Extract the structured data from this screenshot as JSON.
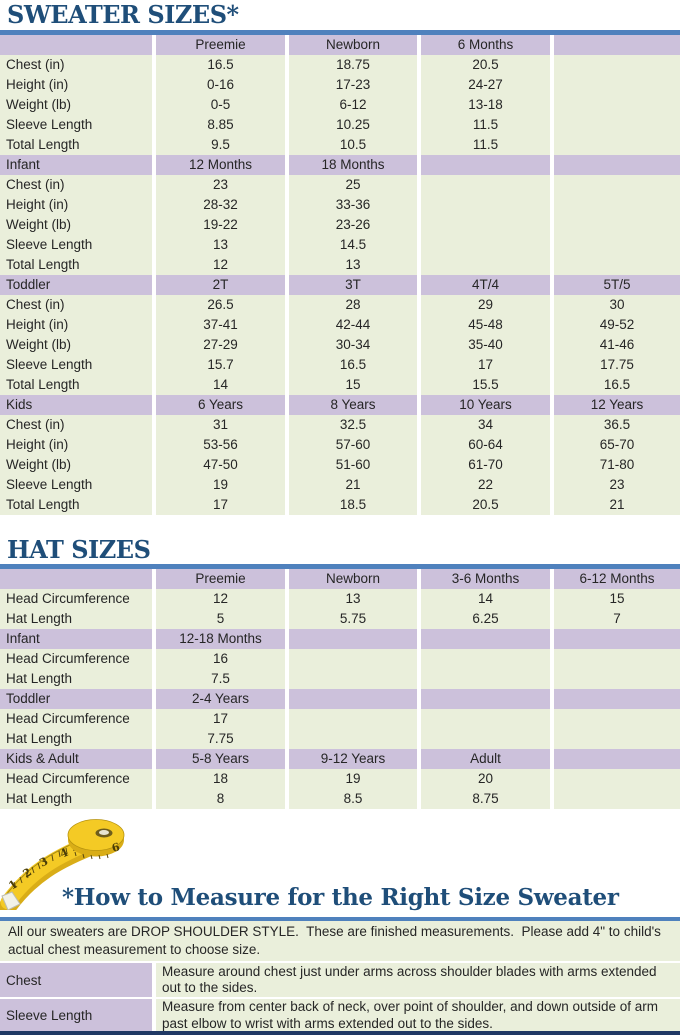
{
  "sweater": {
    "title": "SWEATER SIZES*",
    "sections": [
      {
        "header": [
          "",
          "Preemie",
          "Newborn",
          "6 Months",
          ""
        ],
        "rows": [
          [
            "Chest (in)",
            "16.5",
            "18.75",
            "20.5",
            ""
          ],
          [
            "Height (in)",
            "0-16",
            "17-23",
            "24-27",
            ""
          ],
          [
            "Weight (lb)",
            "0-5",
            "6-12",
            "13-18",
            ""
          ],
          [
            "Sleeve Length",
            "8.85",
            "10.25",
            "11.5",
            ""
          ],
          [
            "Total Length",
            "9.5",
            "10.5",
            "11.5",
            ""
          ]
        ]
      },
      {
        "header": [
          "Infant",
          "12 Months",
          "18 Months",
          "",
          ""
        ],
        "rows": [
          [
            "Chest (in)",
            "23",
            "25",
            "",
            ""
          ],
          [
            "Height (in)",
            "28-32",
            "33-36",
            "",
            ""
          ],
          [
            "Weight (lb)",
            "19-22",
            "23-26",
            "",
            ""
          ],
          [
            "Sleeve Length",
            "13",
            "14.5",
            "",
            ""
          ],
          [
            "Total Length",
            "12",
            "13",
            "",
            ""
          ]
        ]
      },
      {
        "header": [
          "Toddler",
          "2T",
          "3T",
          "4T/4",
          "5T/5"
        ],
        "rows": [
          [
            "Chest (in)",
            "26.5",
            "28",
            "29",
            "30"
          ],
          [
            "Height (in)",
            "37-41",
            "42-44",
            "45-48",
            "49-52"
          ],
          [
            "Weight (lb)",
            "27-29",
            "30-34",
            "35-40",
            "41-46"
          ],
          [
            "Sleeve Length",
            "15.7",
            "16.5",
            "17",
            "17.75"
          ],
          [
            "Total Length",
            "14",
            "15",
            "15.5",
            "16.5"
          ]
        ]
      },
      {
        "header": [
          "Kids",
          "6 Years",
          "8 Years",
          "10 Years",
          "12 Years"
        ],
        "rows": [
          [
            "Chest (in)",
            "31",
            "32.5",
            "34",
            "36.5"
          ],
          [
            "Height (in)",
            "53-56",
            "57-60",
            "60-64",
            "65-70"
          ],
          [
            "Weight (lb)",
            "47-50",
            "51-60",
            "61-70",
            "71-80"
          ],
          [
            "Sleeve Length",
            "19",
            "21",
            "22",
            "23"
          ],
          [
            "Total Length",
            "17",
            "18.5",
            "20.5",
            "21"
          ]
        ]
      }
    ]
  },
  "hat": {
    "title": "HAT SIZES",
    "sections": [
      {
        "header": [
          "",
          "Preemie",
          "Newborn",
          "3-6 Months",
          "6-12 Months"
        ],
        "rows": [
          [
            "Head Circumference",
            "12",
            "13",
            "14",
            "15"
          ],
          [
            "Hat Length",
            "5",
            "5.75",
            "6.25",
            "7"
          ]
        ]
      },
      {
        "header": [
          "Infant",
          "12-18 Months",
          "",
          "",
          ""
        ],
        "rows": [
          [
            "Head Circumference",
            "16",
            "",
            "",
            ""
          ],
          [
            "Hat Length",
            "7.5",
            "",
            "",
            ""
          ]
        ]
      },
      {
        "header": [
          "Toddler",
          "2-4 Years",
          "",
          "",
          ""
        ],
        "rows": [
          [
            "Head Circumference",
            "17",
            "",
            "",
            ""
          ],
          [
            "Hat Length",
            "7.75",
            "",
            "",
            ""
          ]
        ]
      },
      {
        "header": [
          "Kids & Adult",
          "5-8 Years",
          "9-12 Years",
          "Adult",
          ""
        ],
        "rows": [
          [
            "Head Circumference",
            "18",
            "19",
            "20",
            ""
          ],
          [
            "Hat Length",
            "8",
            "8.5",
            "8.75",
            ""
          ]
        ]
      }
    ]
  },
  "measure": {
    "title": "*How to Measure for the Right Size Sweater",
    "intro": "All our sweaters are DROP SHOULDER STYLE.  These are finished measurements.  Please add 4\" to child's actual chest measurement to choose size.",
    "rows": [
      {
        "label": "Chest",
        "description": "Measure around chest just under arms across shoulder blades with arms extended out to the sides."
      },
      {
        "label": "Sleeve Length",
        "description": "Measure from center back of neck, over point of shoulder, and down outside of arm past elbow to wrist with arms extended out to the sides."
      }
    ]
  },
  "tape": {
    "numbers": [
      "1",
      "2",
      "3",
      "4",
      "5",
      "6"
    ]
  },
  "colors": {
    "title_navy": "#1f4e79",
    "rule_blue": "#4f81bd",
    "lavender": "#ccc1db",
    "pale_green": "#eaefdb",
    "bottom_navy": "#1f3864",
    "text_dark": "#262626",
    "tape_yellow": "#f4ca25",
    "tape_shade": "#d9ad17"
  }
}
